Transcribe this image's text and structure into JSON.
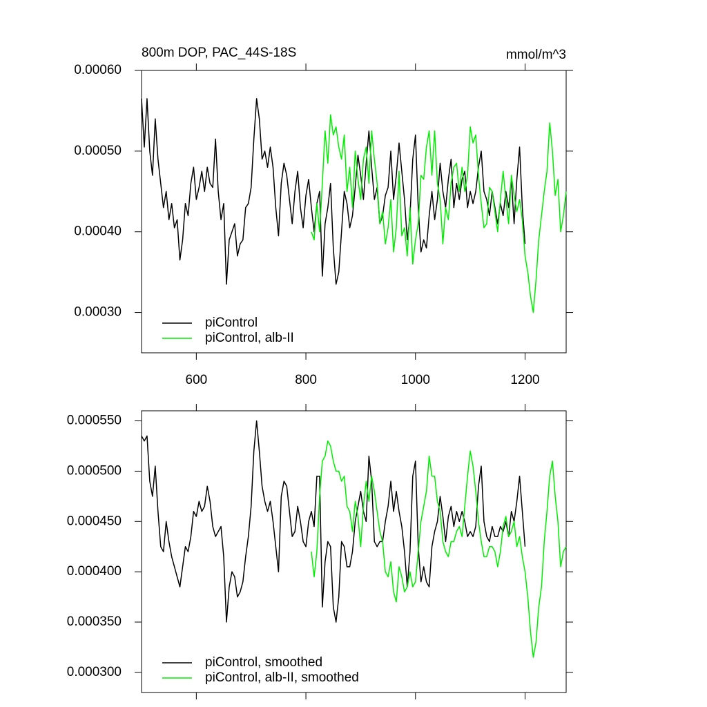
{
  "chart_data": [
    {
      "type": "line",
      "title": "800m DOP, PAC_44S-18S",
      "units": "mmol/m^3",
      "x": [
        500,
        505,
        510,
        515,
        520,
        525,
        530,
        535,
        540,
        545,
        550,
        555,
        560,
        565,
        570,
        575,
        580,
        585,
        590,
        595,
        600,
        605,
        610,
        615,
        620,
        625,
        630,
        635,
        640,
        645,
        650,
        655,
        660,
        665,
        670,
        675,
        680,
        685,
        690,
        695,
        700,
        705,
        710,
        715,
        720,
        725,
        730,
        735,
        740,
        745,
        750,
        755,
        760,
        765,
        770,
        775,
        780,
        785,
        790,
        795,
        800,
        805,
        810,
        815,
        820,
        825,
        830,
        835,
        840,
        845,
        850,
        855,
        860,
        865,
        870,
        875,
        880,
        885,
        890,
        895,
        900,
        905,
        910,
        915,
        920,
        925,
        930,
        935,
        940,
        945,
        950,
        955,
        960,
        965,
        970,
        975,
        980,
        985,
        990,
        995,
        1000,
        1005,
        1010,
        1015,
        1020,
        1025,
        1030,
        1035,
        1040,
        1045,
        1050,
        1055,
        1060,
        1065,
        1070,
        1075,
        1080,
        1085,
        1090,
        1095,
        1100,
        1105,
        1110,
        1115,
        1120,
        1125,
        1130,
        1135,
        1140,
        1145,
        1150,
        1155,
        1160,
        1165,
        1170,
        1175,
        1180,
        1185,
        1190,
        1195,
        1200,
        1205,
        1210,
        1215,
        1220,
        1225,
        1230,
        1235,
        1240,
        1245,
        1250,
        1255,
        1260,
        1265,
        1270,
        1275
      ],
      "series": [
        {
          "name": "piControl",
          "color": "#000000",
          "values": [
            0.000565,
            0.000505,
            0.000565,
            0.0005,
            0.00047,
            0.00054,
            0.00049,
            0.00046,
            0.00043,
            0.00045,
            0.000415,
            0.000435,
            0.000405,
            0.000415,
            0.000365,
            0.00039,
            0.000435,
            0.00042,
            0.00046,
            0.00048,
            0.00044,
            0.000455,
            0.000475,
            0.00045,
            0.00048,
            0.00046,
            0.000455,
            0.000515,
            0.00045,
            0.000415,
            0.000435,
            0.000335,
            0.00039,
            0.0004,
            0.00041,
            0.00037,
            0.000385,
            0.00039,
            0.00043,
            0.000435,
            0.000455,
            0.000515,
            0.000565,
            0.00054,
            0.00049,
            0.0005,
            0.00048,
            0.000505,
            0.00048,
            0.00043,
            0.000395,
            0.00046,
            0.000485,
            0.00047,
            0.00044,
            0.00041,
            0.00045,
            0.000475,
            0.00043,
            0.000405,
            0.000445,
            0.000465,
            0.00043,
            0.0004,
            0.000435,
            0.00045,
            0.000345,
            0.00041,
            0.00043,
            0.00046,
            0.00038,
            0.000335,
            0.00035,
            0.0004,
            0.00045,
            0.000435,
            0.000405,
            0.00042,
            0.000455,
            0.000495,
            0.00047,
            0.00044,
            0.000485,
            0.000525,
            0.00048,
            0.00044,
            0.000455,
            0.00041,
            0.00042,
            0.000445,
            0.000455,
            0.0005,
            0.00044,
            0.00047,
            0.00051,
            0.000475,
            0.00044,
            0.00039,
            0.00042,
            0.00049,
            0.00052,
            0.00043,
            0.000375,
            0.00039,
            0.00038,
            0.00042,
            0.00045,
            0.000415,
            0.00044,
            0.000485,
            0.00045,
            0.00043,
            0.000465,
            0.00049,
            0.00043,
            0.00046,
            0.00044,
            0.000465,
            0.000475,
            0.00043,
            0.00045,
            0.000435,
            0.00045,
            0.00048,
            0.0005,
            0.00045,
            0.00044,
            0.00042,
            0.00045,
            0.00043,
            0.00041,
            0.000435,
            0.00042,
            0.00045,
            0.00043,
            0.000465,
            0.00041,
            0.000465,
            0.000505,
            0.00043,
            0.000385,
            null,
            null,
            null,
            null,
            null,
            null,
            null,
            null,
            null,
            null,
            null,
            null,
            null,
            null,
            null
          ]
        },
        {
          "name": "piControl, alb-II",
          "color": "#00ee00",
          "values": [
            null,
            null,
            null,
            null,
            null,
            null,
            null,
            null,
            null,
            null,
            null,
            null,
            null,
            null,
            null,
            null,
            null,
            null,
            null,
            null,
            null,
            null,
            null,
            null,
            null,
            null,
            null,
            null,
            null,
            null,
            null,
            null,
            null,
            null,
            null,
            null,
            null,
            null,
            null,
            null,
            null,
            null,
            null,
            null,
            null,
            null,
            null,
            null,
            null,
            null,
            null,
            null,
            null,
            null,
            null,
            null,
            null,
            null,
            null,
            null,
            null,
            null,
            0.0004,
            0.00039,
            0.000435,
            0.0004,
            0.00046,
            0.000525,
            0.000485,
            0.000545,
            0.00052,
            0.00053,
            0.000505,
            0.00049,
            0.00052,
            0.00045,
            0.00048,
            0.00043,
            0.0005,
            0.000465,
            0.00044,
            0.00049,
            0.000505,
            0.00046,
            0.000525,
            0.00049,
            0.00046,
            0.00041,
            0.000425,
            0.000385,
            0.000405,
            0.00044,
            0.000375,
            0.000405,
            0.000475,
            0.000395,
            0.000405,
            0.00037,
            0.00043,
            0.00036,
            0.00039,
            0.00041,
            0.00047,
            0.000465,
            0.000505,
            0.000525,
            0.00047,
            0.000525,
            0.00046,
            0.00044,
            0.000385,
            0.00043,
            0.000415,
            0.00046,
            0.00048,
            0.000485,
            0.00045,
            0.00048,
            0.00045,
            0.00047,
            0.00053,
            0.00051,
            0.00052,
            0.00047,
            0.000435,
            0.000405,
            0.00041,
            0.000455,
            0.00045,
            0.000425,
            0.0004,
            0.00044,
            0.000475,
            0.00044,
            0.00041,
            0.00047,
            0.000445,
            0.000425,
            0.00044,
            0.000415,
            0.00037,
            0.00035,
            0.00032,
            0.0003,
            0.00034,
            0.00039,
            0.00042,
            0.00045,
            0.000475,
            0.000535,
            0.0005,
            0.000445,
            0.000465,
            0.0004,
            0.00042,
            0.00045
          ]
        }
      ],
      "xlim": [
        500,
        1275
      ],
      "ylim": [
        0.00025,
        0.0006
      ],
      "xticks": [
        600,
        800,
        1000,
        1200
      ],
      "yticks": [
        {
          "value": 0.0003,
          "label": "0.00030"
        },
        {
          "value": 0.0004,
          "label": "0.00040"
        },
        {
          "value": 0.0005,
          "label": "0.00050"
        },
        {
          "value": 0.0006,
          "label": "0.00060"
        }
      ],
      "xtick_labels": true,
      "legend": "lower left"
    },
    {
      "type": "line",
      "x": [
        500,
        505,
        510,
        515,
        520,
        525,
        530,
        535,
        540,
        545,
        550,
        555,
        560,
        565,
        570,
        575,
        580,
        585,
        590,
        595,
        600,
        605,
        610,
        615,
        620,
        625,
        630,
        635,
        640,
        645,
        650,
        655,
        660,
        665,
        670,
        675,
        680,
        685,
        690,
        695,
        700,
        705,
        710,
        715,
        720,
        725,
        730,
        735,
        740,
        745,
        750,
        755,
        760,
        765,
        770,
        775,
        780,
        785,
        790,
        795,
        800,
        805,
        810,
        815,
        820,
        825,
        830,
        835,
        840,
        845,
        850,
        855,
        860,
        865,
        870,
        875,
        880,
        885,
        890,
        895,
        900,
        905,
        910,
        915,
        920,
        925,
        930,
        935,
        940,
        945,
        950,
        955,
        960,
        965,
        970,
        975,
        980,
        985,
        990,
        995,
        1000,
        1005,
        1010,
        1015,
        1020,
        1025,
        1030,
        1035,
        1040,
        1045,
        1050,
        1055,
        1060,
        1065,
        1070,
        1075,
        1080,
        1085,
        1090,
        1095,
        1100,
        1105,
        1110,
        1115,
        1120,
        1125,
        1130,
        1135,
        1140,
        1145,
        1150,
        1155,
        1160,
        1165,
        1170,
        1175,
        1180,
        1185,
        1190,
        1195,
        1200,
        1205,
        1210,
        1215,
        1220,
        1225,
        1230,
        1235,
        1240,
        1245,
        1250,
        1255,
        1260,
        1265,
        1270,
        1275
      ],
      "series": [
        {
          "name": "piControl, smoothed",
          "color": "#000000",
          "values": [
            0.000535,
            0.00053,
            0.000535,
            0.00049,
            0.000475,
            0.000505,
            0.00046,
            0.000425,
            0.00042,
            0.00045,
            0.00043,
            0.000415,
            0.000405,
            0.000395,
            0.000385,
            0.000405,
            0.000425,
            0.00042,
            0.000435,
            0.00046,
            0.000455,
            0.00047,
            0.00046,
            0.000465,
            0.000485,
            0.00047,
            0.000445,
            0.000435,
            0.00044,
            0.000445,
            0.000415,
            0.00035,
            0.000385,
            0.0004,
            0.000395,
            0.000375,
            0.00038,
            0.00039,
            0.000415,
            0.000435,
            0.000465,
            0.00052,
            0.00055,
            0.00052,
            0.000485,
            0.00047,
            0.00046,
            0.00047,
            0.00045,
            0.000425,
            0.0004,
            0.000475,
            0.00049,
            0.000485,
            0.00046,
            0.000435,
            0.00044,
            0.000465,
            0.00045,
            0.00043,
            0.000425,
            0.00045,
            0.00046,
            0.000445,
            0.000495,
            0.000495,
            0.000365,
            0.00041,
            0.00043,
            0.000425,
            0.000365,
            0.00035,
            0.000375,
            0.00043,
            0.000425,
            0.000405,
            0.000405,
            0.00042,
            0.00045,
            0.000465,
            0.00048,
            0.00046,
            0.00045,
            0.000515,
            0.00049,
            0.00043,
            0.000425,
            0.00043,
            0.00043,
            0.00045,
            0.000465,
            0.00049,
            0.00046,
            0.00048,
            0.00046,
            0.000445,
            0.00042,
            0.000385,
            0.00042,
            0.000495,
            0.00051,
            0.000425,
            0.00039,
            0.000405,
            0.00039,
            0.000385,
            0.000425,
            0.00044,
            0.00045,
            0.000475,
            0.000455,
            0.00043,
            0.000455,
            0.000465,
            0.000445,
            0.00046,
            0.00045,
            0.00046,
            0.00045,
            0.000435,
            0.00044,
            0.000435,
            0.000445,
            0.000485,
            0.000505,
            0.00045,
            0.000435,
            0.00043,
            0.000445,
            0.000435,
            0.000435,
            0.000445,
            0.00044,
            0.00045,
            0.000435,
            0.00046,
            0.00045,
            0.00047,
            0.000495,
            0.00046,
            0.000425,
            null,
            null,
            null,
            null,
            null,
            null,
            null,
            null,
            null,
            null,
            null,
            null,
            null,
            null,
            null
          ]
        },
        {
          "name": "piControl, alb-II, smoothed",
          "color": "#00ee00",
          "values": [
            null,
            null,
            null,
            null,
            null,
            null,
            null,
            null,
            null,
            null,
            null,
            null,
            null,
            null,
            null,
            null,
            null,
            null,
            null,
            null,
            null,
            null,
            null,
            null,
            null,
            null,
            null,
            null,
            null,
            null,
            null,
            null,
            null,
            null,
            null,
            null,
            null,
            null,
            null,
            null,
            null,
            null,
            null,
            null,
            null,
            null,
            null,
            null,
            null,
            null,
            null,
            null,
            null,
            null,
            null,
            null,
            null,
            null,
            null,
            null,
            null,
            null,
            0.00042,
            0.000395,
            0.00042,
            0.000475,
            0.00051,
            0.000515,
            0.00053,
            0.000525,
            0.00051,
            0.0005,
            0.0005,
            0.00049,
            0.000495,
            0.000465,
            0.00046,
            0.00044,
            0.00047,
            0.000455,
            0.000425,
            0.000465,
            0.00049,
            0.00047,
            0.000495,
            0.00048,
            0.00046,
            0.00044,
            0.00043,
            0.0004,
            0.000395,
            0.00041,
            0.00038,
            0.00037,
            0.000405,
            0.000395,
            0.00038,
            0.000385,
            0.0004,
            0.000385,
            0.00039,
            0.00042,
            0.00045,
            0.000465,
            0.00048,
            0.000515,
            0.000495,
            0.000495,
            0.00047,
            0.00046,
            0.00043,
            0.00042,
            0.000415,
            0.00043,
            0.00043,
            0.00044,
            0.000445,
            0.000435,
            0.000465,
            0.000495,
            0.00052,
            0.000505,
            0.00048,
            0.00045,
            0.00043,
            0.000415,
            0.000415,
            0.000425,
            0.000425,
            0.00042,
            0.000405,
            0.00042,
            0.000445,
            0.000455,
            0.000435,
            0.00044,
            0.00045,
            0.000425,
            0.000435,
            0.000415,
            0.0004,
            0.000375,
            0.00034,
            0.000315,
            0.00033,
            0.000365,
            0.000385,
            0.00043,
            0.00046,
            0.000495,
            0.00051,
            0.000475,
            0.00045,
            0.000405,
            0.00042,
            0.000425
          ]
        }
      ],
      "xlim": [
        500,
        1275
      ],
      "ylim": [
        0.00028,
        0.00056
      ],
      "xticks": [
        600,
        800,
        1000,
        1200
      ],
      "yticks": [
        {
          "value": 0.0003,
          "label": "0.000300"
        },
        {
          "value": 0.00035,
          "label": "0.000350"
        },
        {
          "value": 0.0004,
          "label": "0.000400"
        },
        {
          "value": 0.00045,
          "label": "0.000450"
        },
        {
          "value": 0.0005,
          "label": "0.000500"
        },
        {
          "value": 0.00055,
          "label": "0.000550"
        }
      ],
      "xtick_labels": false,
      "legend": "lower left"
    }
  ]
}
